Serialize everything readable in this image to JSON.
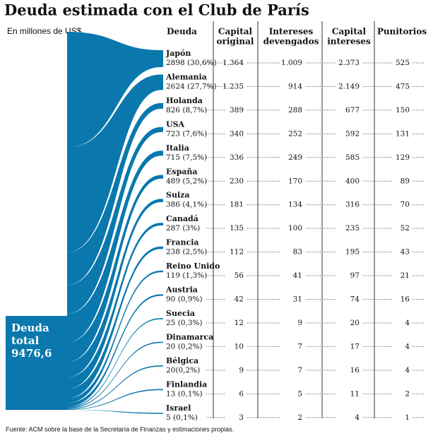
{
  "chart_data": {
    "type": "sankey",
    "title": "Deuda estimada con el Club de París",
    "subtitle": "En millones de US$",
    "total_label": [
      "Deuda",
      "total",
      "9476,6"
    ],
    "color": "#0a78ad",
    "categories_header": "Deuda",
    "categories": [
      "Japón",
      "Alemania",
      "Holanda",
      "USA",
      "Italia",
      "España",
      "Suiza",
      "Canadá",
      "Francia",
      "Reino Unido",
      "Austria",
      "Suecia",
      "Dinamarca",
      "Bélgica",
      "Finlandia",
      "Israel"
    ],
    "values": [
      2898,
      2624,
      826,
      723,
      715,
      489,
      386,
      287,
      238,
      119,
      90,
      25,
      20,
      20,
      13,
      5
    ],
    "value_labels": [
      "2898 (30,6%)",
      "2624 (27,7%)",
      "826 (8,7%)",
      "723 (7,6%)",
      "715 (7,5%)",
      "489 (5,2%)",
      "386 (4,1%)",
      "287 (3%)",
      "238 (2,5%)",
      "119 (1,3%)",
      "90 (0,9%)",
      "25 (0,3%)",
      "20 (0,2%)",
      "20(0,2%)",
      "13 (0,1%)",
      "5 (0,1%)"
    ],
    "columns": [
      {
        "header": [
          "Capital",
          "original"
        ],
        "values": [
          "1.364",
          "1.235",
          "389",
          "340",
          "336",
          "230",
          "181",
          "135",
          "112",
          "56",
          "42",
          "12",
          "10",
          "9",
          "6",
          "3"
        ]
      },
      {
        "header": [
          "Intereses",
          "devengados"
        ],
        "values": [
          "1.009",
          "914",
          "288",
          "252",
          "249",
          "170",
          "134",
          "100",
          "83",
          "41",
          "31",
          "9",
          "7",
          "7",
          "5",
          "2"
        ]
      },
      {
        "header": [
          "Capital",
          "intereses"
        ],
        "values": [
          "2.373",
          "2.149",
          "677",
          "592",
          "585",
          "400",
          "316",
          "235",
          "195",
          "97",
          "74",
          "20",
          "17",
          "16",
          "11",
          "4"
        ]
      },
      {
        "header": [
          "Punitorios"
        ],
        "values": [
          "525",
          "475",
          "150",
          "131",
          "129",
          "89",
          "70",
          "52",
          "43",
          "21",
          "16",
          "4",
          "4",
          "4",
          "2",
          "1"
        ]
      }
    ],
    "source": "Fuente: ACM sobre la base de la Secretaría de Finanzas y estimaciones propias."
  }
}
